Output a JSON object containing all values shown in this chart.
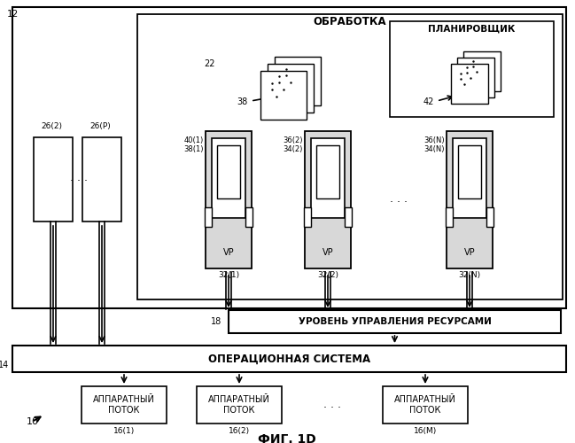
{
  "title": "ФИГ. 1D",
  "bg_color": "#ffffff",
  "label_12": "12",
  "label_10": "10",
  "label_14": "14",
  "label_18": "18",
  "label_22": "22",
  "label_38": "38",
  "label_42": "42",
  "text_obrabotka": "ОБРАБОТКА",
  "text_planirovshchik": "ПЛАНИРОВЩИК",
  "text_uroven": "УРОВЕНЬ УПРАВЛЕНИЯ РЕСУРСАМИ",
  "text_os": "ОПЕРАЦИОННАЯ СИСТЕМА",
  "text_ap": "АППАРАТНЫЙ\nПОТОК",
  "text_vp": "VP",
  "vp_labels_top": [
    "40(1)",
    "36(2)",
    "36(N)"
  ],
  "vp_labels_mid": [
    "38(1)",
    "34(2)",
    "34(N)"
  ],
  "vp_bottom_labels": [
    "32(1)",
    "32(2)",
    "32(N)"
  ],
  "ext_labels": [
    "26(2)",
    "26(P)"
  ],
  "hw_labels": [
    "16(1)",
    "16(2)",
    "16(M)"
  ]
}
